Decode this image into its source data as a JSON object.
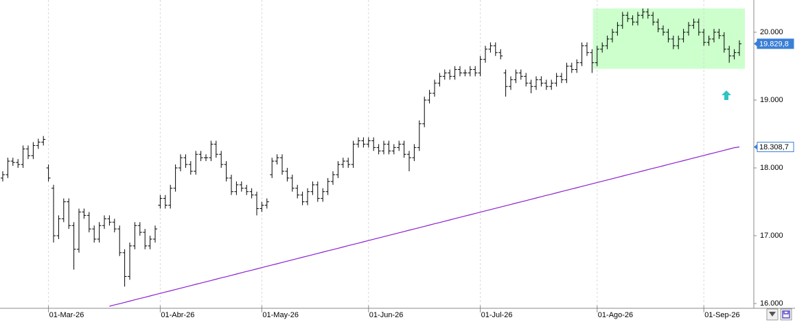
{
  "chart_data": {
    "type": "ohlc",
    "categories": [
      null,
      null,
      null,
      null,
      null,
      null,
      null,
      null,
      null,
      "01-Mar-26",
      null,
      null,
      null,
      null,
      null,
      null,
      null,
      null,
      null,
      null,
      null,
      null,
      null,
      null,
      null,
      null,
      null,
      null,
      null,
      null,
      null,
      "01-Abr-26",
      null,
      null,
      null,
      null,
      null,
      null,
      null,
      null,
      null,
      null,
      null,
      null,
      null,
      null,
      null,
      null,
      null,
      null,
      null,
      "01-May-26",
      null,
      null,
      null,
      null,
      null,
      null,
      null,
      null,
      null,
      null,
      null,
      null,
      null,
      null,
      null,
      null,
      null,
      null,
      null,
      null,
      "01-Jun-26",
      null,
      null,
      null,
      null,
      null,
      null,
      null,
      null,
      null,
      null,
      null,
      null,
      null,
      null,
      null,
      null,
      null,
      null,
      null,
      null,
      null,
      "01-Jul-26",
      null,
      null,
      null,
      null,
      null,
      null,
      null,
      null,
      null,
      null,
      null,
      null,
      null,
      null,
      null,
      null,
      null,
      null,
      null,
      null,
      null,
      null,
      "01-Ago-26",
      null,
      null,
      null,
      null,
      null,
      null,
      null,
      null,
      null,
      null,
      null,
      null,
      null,
      null,
      null,
      null,
      null,
      null,
      null,
      null,
      "01-Sep-26",
      null,
      null,
      null,
      null,
      null,
      null,
      null
    ],
    "open": [
      17850,
      17900,
      18100,
      18080,
      18050,
      18280,
      18180,
      18330,
      18380,
      18000,
      17700,
      17000,
      17250,
      17500,
      17150,
      16800,
      17350,
      17300,
      17100,
      16950,
      17150,
      17250,
      17200,
      17100,
      16750,
      16400,
      16850,
      17150,
      17050,
      16850,
      16950,
      17450,
      17550,
      17450,
      17700,
      18000,
      18150,
      18050,
      17950,
      18200,
      18150,
      18150,
      18350,
      18200,
      18050,
      17850,
      17650,
      17750,
      17700,
      17650,
      17600,
      17400,
      17450,
      17900,
      18100,
      18150,
      17950,
      17850,
      17700,
      17600,
      17500,
      17650,
      17750,
      17550,
      17650,
      17800,
      17900,
      18050,
      18100,
      18050,
      18350,
      18400,
      18350,
      18400,
      18300,
      18250,
      18350,
      18250,
      18300,
      18350,
      18200,
      18150,
      18300,
      18650,
      19000,
      19100,
      19250,
      19350,
      19400,
      19350,
      19450,
      19400,
      19400,
      19450,
      19400,
      19600,
      19750,
      19800,
      19700,
      19400,
      19200,
      19300,
      19400,
      19350,
      19250,
      19200,
      19300,
      19250,
      19200,
      19250,
      19350,
      19300,
      19500,
      19450,
      19550,
      19800,
      19700,
      19550,
      19750,
      19800,
      19900,
      20000,
      20100,
      20250,
      20200,
      20150,
      20250,
      20300,
      20250,
      20150,
      20050,
      20000,
      19900,
      19800,
      19900,
      20000,
      20100,
      20150,
      20000,
      19850,
      19900,
      20000,
      19950,
      19750,
      19650,
      19700
    ],
    "high": [
      17950,
      18150,
      18150,
      18130,
      18330,
      18330,
      18380,
      18430,
      18470,
      18050,
      17750,
      17300,
      17550,
      17550,
      17200,
      17400,
      17400,
      17350,
      17150,
      17200,
      17300,
      17300,
      17250,
      17150,
      16800,
      16900,
      17200,
      17200,
      17100,
      17000,
      17150,
      17600,
      17600,
      17750,
      18050,
      18200,
      18200,
      18100,
      18250,
      18250,
      18200,
      18400,
      18400,
      18250,
      18100,
      17900,
      17800,
      17800,
      17750,
      17700,
      17650,
      17500,
      17550,
      18150,
      18200,
      18200,
      18000,
      17900,
      17750,
      17650,
      17700,
      17800,
      17800,
      17700,
      17850,
      17950,
      18100,
      18150,
      18150,
      18400,
      18450,
      18450,
      18450,
      18450,
      18350,
      18400,
      18400,
      18350,
      18400,
      18400,
      18250,
      18350,
      18700,
      19050,
      19150,
      19300,
      19400,
      19450,
      19450,
      19500,
      19500,
      19450,
      19500,
      19500,
      19650,
      19800,
      19850,
      19850,
      19750,
      19450,
      19350,
      19450,
      19450,
      19400,
      19300,
      19350,
      19350,
      19300,
      19300,
      19400,
      19400,
      19550,
      19550,
      19600,
      19850,
      19850,
      19750,
      19800,
      19850,
      19950,
      20050,
      20150,
      20300,
      20300,
      20250,
      20300,
      20350,
      20350,
      20300,
      20200,
      20100,
      20050,
      19950,
      19950,
      20050,
      20150,
      20200,
      20200,
      20050,
      19950,
      20050,
      20050,
      20000,
      19800,
      19750,
      19880
    ],
    "low": [
      17800,
      17850,
      18030,
      18000,
      18000,
      18130,
      18130,
      18280,
      18330,
      17800,
      16900,
      16950,
      17200,
      17100,
      16500,
      16750,
      17250,
      17050,
      16900,
      16900,
      17100,
      17150,
      17050,
      16700,
      16250,
      16350,
      16800,
      17000,
      16800,
      16800,
      16900,
      17400,
      17400,
      17400,
      17650,
      17950,
      18000,
      17900,
      17900,
      18100,
      18100,
      18100,
      18150,
      18000,
      17800,
      17600,
      17600,
      17650,
      17600,
      17550,
      17300,
      17350,
      17400,
      17850,
      18050,
      17900,
      17800,
      17650,
      17550,
      17450,
      17450,
      17600,
      17500,
      17500,
      17600,
      17750,
      17850,
      18000,
      18000,
      18000,
      18300,
      18300,
      18300,
      18250,
      18200,
      18200,
      18200,
      18200,
      18250,
      18150,
      17950,
      18100,
      18250,
      18600,
      18950,
      19050,
      19200,
      19300,
      19300,
      19300,
      19350,
      19350,
      19350,
      19350,
      19350,
      19550,
      19700,
      19650,
      19600,
      19050,
      19150,
      19250,
      19300,
      19200,
      19100,
      19150,
      19200,
      19150,
      19150,
      19200,
      19250,
      19250,
      19400,
      19400,
      19500,
      19650,
      19400,
      19500,
      19700,
      19750,
      19850,
      19950,
      20050,
      20150,
      20100,
      20100,
      20200,
      20200,
      20100,
      20000,
      19950,
      19850,
      19750,
      19750,
      19850,
      19950,
      20050,
      19950,
      19800,
      19800,
      19850,
      19900,
      19700,
      19550,
      19600,
      19650
    ],
    "close": [
      17900,
      18100,
      18080,
      18050,
      18280,
      18180,
      18330,
      18380,
      18420,
      17850,
      17000,
      17250,
      17500,
      17150,
      16800,
      17350,
      17300,
      17100,
      16950,
      17150,
      17250,
      17200,
      17100,
      16750,
      16400,
      16850,
      17150,
      17050,
      16850,
      16950,
      17100,
      17550,
      17450,
      17700,
      18000,
      18150,
      18050,
      17950,
      18200,
      18150,
      18150,
      18350,
      18200,
      18050,
      17850,
      17650,
      17750,
      17700,
      17650,
      17600,
      17400,
      17450,
      17500,
      18100,
      18150,
      17950,
      17850,
      17700,
      17600,
      17500,
      17650,
      17750,
      17550,
      17650,
      17800,
      17900,
      18050,
      18100,
      18050,
      18350,
      18400,
      18350,
      18400,
      18300,
      18250,
      18350,
      18250,
      18300,
      18350,
      18200,
      18150,
      18300,
      18650,
      19000,
      19100,
      19250,
      19350,
      19400,
      19350,
      19450,
      19400,
      19400,
      19450,
      19400,
      19600,
      19750,
      19800,
      19700,
      19650,
      19200,
      19300,
      19400,
      19350,
      19250,
      19200,
      19300,
      19250,
      19200,
      19250,
      19350,
      19300,
      19500,
      19450,
      19550,
      19800,
      19700,
      19550,
      19750,
      19800,
      19900,
      20000,
      20100,
      20250,
      20200,
      20150,
      20250,
      20300,
      20250,
      20150,
      20050,
      20000,
      19900,
      19800,
      19900,
      20000,
      20100,
      20150,
      20000,
      19850,
      19900,
      20000,
      19950,
      19750,
      19650,
      19700,
      19829.8
    ],
    "color": "#000000",
    "close_label": "19.829,8",
    "close_label_color": "#3a7fd5",
    "moving_average": {
      "color": "#8a1fd0",
      "label": "18.308,7",
      "values": [
        null,
        null,
        null,
        null,
        null,
        null,
        null,
        null,
        null,
        null,
        null,
        null,
        null,
        null,
        null,
        null,
        null,
        null,
        null,
        null,
        null,
        15960,
        15979,
        15998,
        16017,
        16036,
        16055,
        16074,
        16093,
        16112,
        16131,
        16150,
        16169,
        16188,
        16207,
        16226,
        16245,
        16264,
        16283,
        16302,
        16321,
        16340,
        16359,
        16378,
        16397,
        16416,
        16435,
        16454,
        16473,
        16492,
        16511,
        16530,
        16549,
        16568,
        16587,
        16606,
        16625,
        16644,
        16663,
        16682,
        16701,
        16720,
        16739,
        16758,
        16777,
        16796,
        16815,
        16834,
        16853,
        16872,
        16891,
        16910,
        16929,
        16948,
        16967,
        16986,
        17005,
        17024,
        17043,
        17062,
        17081,
        17100,
        17119,
        17138,
        17157,
        17176,
        17195,
        17214,
        17233,
        17252,
        17271,
        17290,
        17309,
        17328,
        17347,
        17366,
        17385,
        17404,
        17423,
        17442,
        17461,
        17480,
        17499,
        17518,
        17537,
        17556,
        17575,
        17594,
        17613,
        17632,
        17651,
        17670,
        17689,
        17708,
        17727,
        17746,
        17765,
        17784,
        17803,
        17822,
        17841,
        17860,
        17879,
        17898,
        17917,
        17936,
        17955,
        17974,
        17993,
        18012,
        18031,
        18050,
        18069,
        18088,
        18107,
        18126,
        18145,
        18164,
        18183,
        18202,
        18221,
        18240,
        18259,
        18278,
        18297,
        18308.7
      ]
    },
    "highlight": {
      "bars": [
        117,
        145
      ],
      "ylim": [
        19460,
        20350
      ],
      "color": "#ccffcc"
    },
    "ylim": [
      15930,
      20475
    ],
    "yticks": [
      {
        "value": 16000,
        "label": "16.000"
      },
      {
        "value": 17000,
        "label": "17.000"
      },
      {
        "value": 18000,
        "label": "18.000"
      },
      {
        "value": 19000,
        "label": "19.000"
      },
      {
        "value": 20000,
        "label": "20.000"
      }
    ],
    "grid": true
  }
}
